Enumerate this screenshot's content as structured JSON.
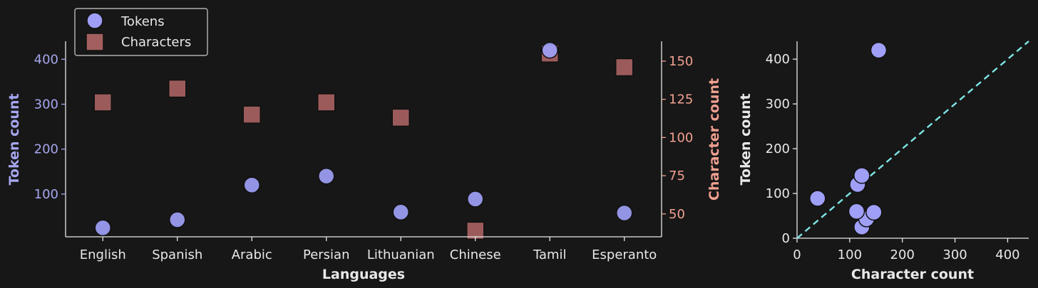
{
  "colors": {
    "background": "#171717",
    "axis": "#e8e8e8",
    "tokens": "#9f9ff7",
    "tokens_axis": "#a6a6f0",
    "characters": "#a35f5f",
    "characters_axis": "#f0a090",
    "diagonal": "#7fe6e6"
  },
  "chart_data": [
    {
      "type": "scatter",
      "xlabel": "Languages",
      "categories": [
        "English",
        "Spanish",
        "Arabic",
        "Persian",
        "Lithuanian",
        "Chinese",
        "Tamil",
        "Esperanto"
      ],
      "y_left": {
        "label": "Token count",
        "ylim": [
          5,
          440
        ],
        "ticks": [
          "100",
          "200",
          "300",
          "400"
        ]
      },
      "y_right": {
        "label": "Character count",
        "ylim": [
          35,
          163
        ],
        "ticks": [
          "50",
          "75",
          "100",
          "125",
          "150"
        ]
      },
      "series": [
        {
          "name": "Tokens",
          "axis": "left",
          "marker": "circle",
          "values": [
            25,
            43,
            120,
            140,
            60,
            89,
            420,
            58
          ]
        },
        {
          "name": "Characters",
          "axis": "right",
          "marker": "square",
          "values": [
            123,
            132,
            115,
            123,
            113,
            39,
            155,
            146
          ]
        }
      ],
      "legend": {
        "placement": "top-left"
      },
      "grid": false
    },
    {
      "type": "scatter",
      "xlabel": "Character count",
      "ylabel": "Token count",
      "xlim": [
        0,
        440
      ],
      "ylim": [
        0,
        440
      ],
      "xticks": [
        "0",
        "100",
        "200",
        "300",
        "400"
      ],
      "yticks": [
        "0",
        "100",
        "200",
        "300",
        "400"
      ],
      "points": [
        {
          "x": 123,
          "y": 25
        },
        {
          "x": 132,
          "y": 43
        },
        {
          "x": 115,
          "y": 120
        },
        {
          "x": 123,
          "y": 140
        },
        {
          "x": 113,
          "y": 60
        },
        {
          "x": 39,
          "y": 89
        },
        {
          "x": 155,
          "y": 420
        },
        {
          "x": 146,
          "y": 58
        }
      ],
      "reference_line": "y = x (dashed)",
      "grid": false
    }
  ]
}
